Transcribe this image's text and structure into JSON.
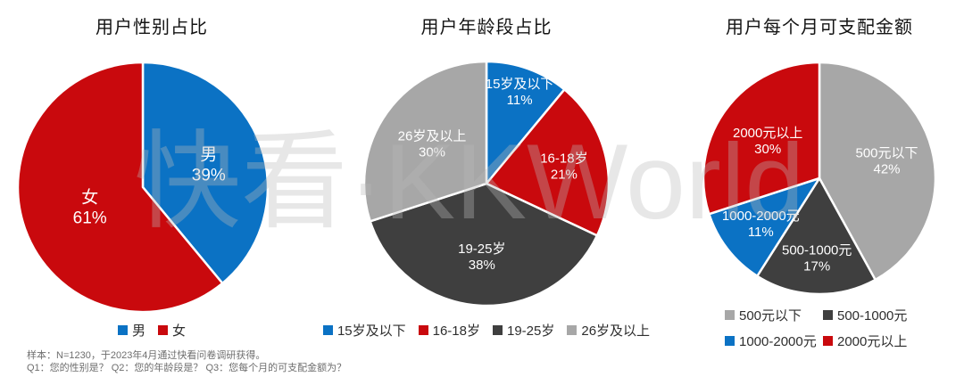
{
  "page": {
    "background": "#ffffff"
  },
  "watermark": {
    "text": "快看·KKWorld"
  },
  "footnote": {
    "line1": "样本：N=1230，于2023年4月通过快看问卷调研获得。",
    "line2": "Q1：您的性别是？ Q2：您的年龄段是？ Q3：您每个月的可支配金额为？"
  },
  "colors": {
    "blue": "#0B72C4",
    "red": "#C9090D",
    "dark_gray": "#3F3F3F",
    "light_gray": "#A7A7A7",
    "label_text": "#FFFFFF",
    "title_text": "#141414",
    "footnote_text": "#6E6E6E"
  },
  "chart_data": [
    {
      "type": "pie",
      "title": "用户性别占比",
      "categories": [
        "男",
        "女"
      ],
      "values": [
        39,
        61
      ],
      "value_labels": [
        "39%",
        "61%"
      ],
      "colors": [
        "#0B72C4",
        "#C9090D"
      ],
      "start_angle": 0,
      "direction": "clockwise",
      "legend_position": "bottom",
      "data_labels": "inside"
    },
    {
      "type": "pie",
      "title": "用户年龄段占比",
      "categories": [
        "15岁及以下",
        "16-18岁",
        "19-25岁",
        "26岁及以上"
      ],
      "values": [
        11,
        21,
        38,
        30
      ],
      "value_labels": [
        "11%",
        "21%",
        "38%",
        "30%"
      ],
      "colors": [
        "#0B72C4",
        "#C9090D",
        "#3F3F3F",
        "#A7A7A7"
      ],
      "start_angle": 0,
      "direction": "clockwise",
      "legend_position": "bottom",
      "data_labels": "inside"
    },
    {
      "type": "pie",
      "title": "用户每个月可支配金额",
      "categories": [
        "500元以下",
        "500-1000元",
        "1000-2000元",
        "2000元以上"
      ],
      "values": [
        42,
        17,
        11,
        30
      ],
      "value_labels": [
        "42%",
        "17%",
        "11%",
        "30%"
      ],
      "colors": [
        "#A7A7A7",
        "#3F3F3F",
        "#0B72C4",
        "#C9090D"
      ],
      "start_angle": 0,
      "direction": "clockwise",
      "legend_position": "bottom",
      "data_labels": "inside"
    }
  ]
}
